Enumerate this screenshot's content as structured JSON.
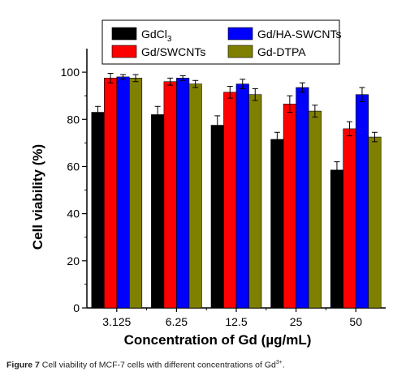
{
  "chart_data": {
    "type": "bar",
    "categories": [
      "3.125",
      "6.25",
      "12.5",
      "25",
      "50"
    ],
    "series": [
      {
        "name": "GdCl3",
        "label_main": "GdCl",
        "label_sub": "3",
        "color": "#000000",
        "values": [
          83,
          82,
          77.5,
          71.5,
          58.5
        ],
        "errors": [
          2.5,
          3.5,
          4,
          3,
          3.5
        ]
      },
      {
        "name": "Gd/SWCNTs",
        "label_main": "Gd/SWCNTs",
        "label_sub": "",
        "color": "#ff0000",
        "values": [
          97.5,
          96,
          91.5,
          86.5,
          76
        ],
        "errors": [
          2,
          1.5,
          2.5,
          3.5,
          3
        ]
      },
      {
        "name": "Gd/HA-SWCNTs",
        "label_main": "Gd/HA-SWCNTs",
        "label_sub": "",
        "color": "#0000ff",
        "values": [
          98,
          97.5,
          95,
          93.5,
          90.5
        ],
        "errors": [
          1,
          1,
          2,
          2,
          3
        ]
      },
      {
        "name": "Gd-DTPA",
        "label_main": "Gd-DTPA",
        "label_sub": "",
        "color": "#808000",
        "values": [
          97.5,
          95,
          90.5,
          83.5,
          72.5
        ],
        "errors": [
          1.5,
          1.5,
          2.5,
          2.5,
          2
        ]
      }
    ],
    "xlabel": "Concentration of Gd (µg/mL)",
    "ylabel": "Cell viability (%)",
    "ylim": [
      0,
      110
    ],
    "yticks": [
      "0",
      "20",
      "40",
      "60",
      "80",
      "100"
    ],
    "legend_position": "top",
    "grid": false
  },
  "caption": {
    "figure_label": "Figure 7",
    "text": "Cell viability of MCF-7 cells with different concentrations of Gd",
    "superscript": "3+",
    "end": "."
  }
}
